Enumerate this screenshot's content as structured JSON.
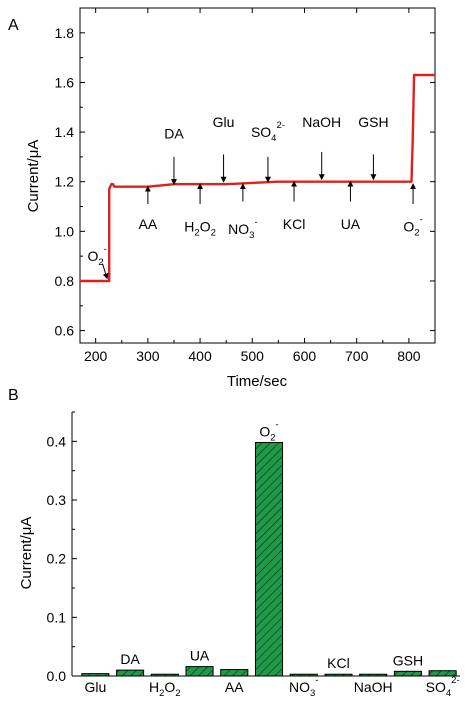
{
  "chart_data": [
    {
      "panel": "A",
      "type": "line",
      "xlabel": "Time/sec",
      "ylabel": "Current/μA",
      "xlim": [
        170,
        850
      ],
      "ylim": [
        0.55,
        1.9
      ],
      "xticks": [
        200,
        300,
        400,
        500,
        600,
        700,
        800
      ],
      "yticks": [
        0.6,
        0.8,
        1.0,
        1.2,
        1.4,
        1.6,
        1.8
      ],
      "line_color": "#e0201b",
      "series": [
        {
          "x": [
            170,
            226,
            226,
            230,
            233,
            236,
            245,
            260,
            300,
            350,
            400,
            450,
            500,
            550,
            600,
            650,
            700,
            750,
            790,
            805,
            807,
            810,
            815,
            850
          ],
          "y": [
            0.8,
            0.8,
            1.17,
            1.19,
            1.19,
            1.18,
            1.18,
            1.18,
            1.18,
            1.19,
            1.19,
            1.19,
            1.195,
            1.2,
            1.2,
            1.2,
            1.2,
            1.2,
            1.2,
            1.2,
            1.35,
            1.63,
            1.63,
            1.63
          ]
        }
      ],
      "annotations": [
        {
          "base": "O",
          "sub": "2",
          "sup": "-",
          "x": 222,
          "text_y": 0.88,
          "arrow_from": [
            213,
            0.87
          ],
          "arrow_to": [
            222,
            0.81
          ],
          "pos": "below"
        },
        {
          "base": "AA",
          "sub": "",
          "sup": "",
          "x": 300,
          "text_y": 1.01,
          "arrow_from": [
            300,
            1.11
          ],
          "arrow_to": [
            300,
            1.18
          ],
          "pos": "below"
        },
        {
          "base": "DA",
          "sub": "",
          "sup": "",
          "x": 350,
          "text_y": 1.375,
          "arrow_from": [
            350,
            1.3
          ],
          "arrow_to": [
            350,
            1.19
          ],
          "pos": "above"
        },
        {
          "base": "H",
          "sub": "2",
          "sup": "",
          "base2": "O",
          "sub2": "2",
          "x": 400,
          "text_y": 1.0,
          "arrow_from": [
            400,
            1.11
          ],
          "arrow_to": [
            400,
            1.19
          ],
          "pos": "below"
        },
        {
          "base": "Glu",
          "sub": "",
          "sup": "",
          "x": 445,
          "text_y": 1.42,
          "arrow_from": [
            445,
            1.31
          ],
          "arrow_to": [
            445,
            1.2
          ],
          "pos": "above"
        },
        {
          "base": "NO",
          "sub": "3",
          "sup": "-",
          "x": 482,
          "text_y": 0.99,
          "arrow_from": [
            482,
            1.12
          ],
          "arrow_to": [
            482,
            1.19
          ],
          "pos": "below"
        },
        {
          "base": "SO",
          "sub": "4",
          "sup": "2-",
          "x": 530,
          "text_y": 1.38,
          "arrow_from": [
            530,
            1.3
          ],
          "arrow_to": [
            530,
            1.2
          ],
          "pos": "above"
        },
        {
          "base": "KCl",
          "sub": "",
          "sup": "",
          "x": 580,
          "text_y": 1.01,
          "arrow_from": [
            580,
            1.12
          ],
          "arrow_to": [
            580,
            1.2
          ],
          "pos": "below"
        },
        {
          "base": "NaOH",
          "sub": "",
          "sup": "",
          "x": 633,
          "text_y": 1.42,
          "arrow_from": [
            633,
            1.32
          ],
          "arrow_to": [
            633,
            1.21
          ],
          "pos": "above"
        },
        {
          "base": "UA",
          "sub": "",
          "sup": "",
          "x": 688,
          "text_y": 1.01,
          "arrow_from": [
            688,
            1.12
          ],
          "arrow_to": [
            688,
            1.2
          ],
          "pos": "below"
        },
        {
          "base": "GSH",
          "sub": "",
          "sup": "",
          "x": 732,
          "text_y": 1.42,
          "arrow_from": [
            732,
            1.31
          ],
          "arrow_to": [
            732,
            1.21
          ],
          "pos": "above"
        },
        {
          "base": "O",
          "sub": "2",
          "sup": "-",
          "x": 808,
          "text_y": 1.0,
          "arrow_from": [
            808,
            1.11
          ],
          "arrow_to": [
            808,
            1.19
          ],
          "pos": "below"
        }
      ]
    },
    {
      "panel": "B",
      "type": "bar",
      "ylabel": "Current/μA",
      "ylim": [
        0,
        0.45
      ],
      "yticks": [
        0.0,
        0.1,
        0.2,
        0.3,
        0.4
      ],
      "bar_color": "#1f9a47",
      "hatch": true,
      "categories": [
        {
          "base": "Glu",
          "sub": "",
          "sup": "",
          "label_pos": "below"
        },
        {
          "base": "DA",
          "sub": "",
          "sup": "",
          "label_pos": "above"
        },
        {
          "base": "H",
          "sub": "2",
          "sup": "",
          "base2": "O",
          "sub2": "2",
          "label_pos": "below"
        },
        {
          "base": "UA",
          "sub": "",
          "sup": "",
          "label_pos": "above"
        },
        {
          "base": "AA",
          "sub": "",
          "sup": "",
          "label_pos": "below"
        },
        {
          "base": "O",
          "sub": "2",
          "sup": "-",
          "label_pos": "above"
        },
        {
          "base": "NO",
          "sub": "3",
          "sup": "-",
          "label_pos": "below"
        },
        {
          "base": "KCl",
          "sub": "",
          "sup": "",
          "label_pos": "above"
        },
        {
          "base": "NaOH",
          "sub": "",
          "sup": "",
          "label_pos": "below"
        },
        {
          "base": "GSH",
          "sub": "",
          "sup": "",
          "label_pos": "above"
        },
        {
          "base": "SO",
          "sub": "4",
          "sup": "2-",
          "label_pos": "below"
        }
      ],
      "values": [
        0.004,
        0.01,
        0.003,
        0.016,
        0.011,
        0.398,
        0.003,
        0.003,
        0.003,
        0.008,
        0.009
      ]
    }
  ]
}
